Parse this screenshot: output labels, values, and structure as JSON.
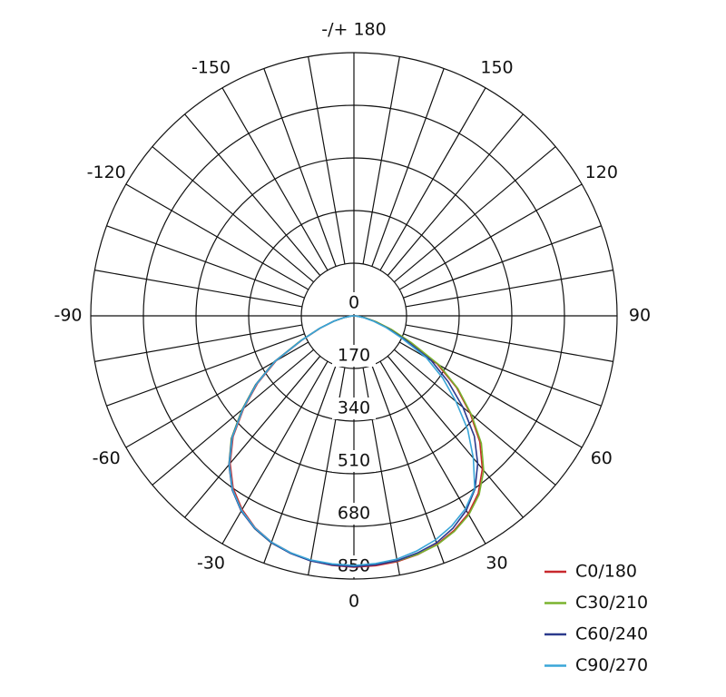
{
  "chart_data": {
    "type": "polar",
    "angles": [
      -90,
      -85,
      -80,
      -75,
      -70,
      -65,
      -60,
      -55,
      -50,
      -45,
      -40,
      -35,
      -30,
      -25,
      -20,
      -15,
      -10,
      -5,
      0,
      5,
      10,
      15,
      20,
      25,
      30,
      35,
      40,
      45,
      50,
      55,
      60,
      65,
      70,
      75,
      80,
      85,
      90
    ],
    "series": [
      {
        "name": "C0/180",
        "color": "#c8282d",
        "values": [
          0,
          10,
          32,
          66,
          115,
          185,
          290,
          380,
          465,
          552,
          622,
          680,
          722,
          755,
          778,
          792,
          803,
          809,
          812,
          810,
          806,
          798,
          785,
          765,
          738,
          700,
          645,
          575,
          490,
          405,
          310,
          200,
          125,
          72,
          36,
          12,
          0
        ]
      },
      {
        "name": "C30/210",
        "color": "#7ab32e",
        "values": [
          0,
          11,
          33,
          68,
          118,
          190,
          298,
          388,
          472,
          560,
          628,
          685,
          726,
          758,
          780,
          793,
          802,
          806,
          808,
          806,
          804,
          797,
          787,
          768,
          742,
          705,
          652,
          582,
          495,
          410,
          318,
          205,
          130,
          75,
          38,
          13,
          0
        ]
      },
      {
        "name": "C60/240",
        "color": "#2b3a8c",
        "values": [
          0,
          11,
          34,
          68,
          118,
          188,
          296,
          386,
          470,
          558,
          628,
          686,
          728,
          758,
          780,
          794,
          804,
          808,
          810,
          807,
          803,
          793,
          780,
          757,
          726,
          682,
          622,
          550,
          460,
          372,
          288,
          182,
          115,
          66,
          32,
          11,
          0
        ]
      },
      {
        "name": "C90/270",
        "color": "#3aa6d8",
        "values": [
          0,
          10,
          32,
          66,
          116,
          186,
          294,
          384,
          468,
          556,
          626,
          684,
          726,
          756,
          778,
          792,
          801,
          804,
          806,
          803,
          798,
          786,
          770,
          748,
          720,
          680,
          600,
          520,
          430,
          350,
          270,
          170,
          110,
          64,
          30,
          10,
          0
        ]
      }
    ],
    "rlim": [
      0,
      850
    ],
    "rticks": [
      0,
      170,
      340,
      510,
      680,
      850
    ],
    "angle_ticks": [
      0,
      30,
      60,
      90,
      120,
      150,
      {
        "value": 180,
        "label": "-/+ 180"
      },
      -150,
      -120,
      -90,
      -60,
      -30
    ],
    "grid": true,
    "legend": "lower right"
  }
}
